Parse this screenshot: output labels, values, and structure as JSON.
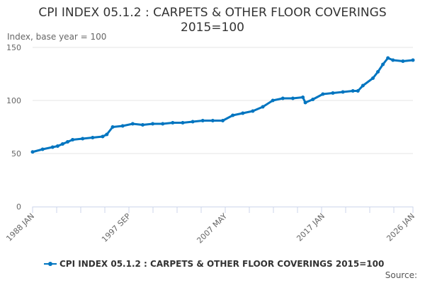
{
  "title_line1": "CPI INDEX 05.1.2 : CARPETS & OTHER FLOOR COVERINGS",
  "title_line2": "2015=100",
  "y_axis_label": "Index, base year = 100",
  "source_label": "Source:",
  "colors": {
    "series": "#0075c0",
    "grid": "#e6e6e6",
    "axis": "#ccd6eb"
  },
  "chart_data": {
    "type": "line",
    "title": "CPI INDEX 05.1.2 : CARPETS & OTHER FLOOR COVERINGS 2015=100",
    "ylabel": "Index, base year = 100",
    "ylim": [
      0,
      150
    ],
    "yticks": [
      "0",
      "50",
      "100",
      "150"
    ],
    "xlim": [
      "1988-01",
      "2026-01"
    ],
    "xtick_labels": [
      "1988 JAN",
      "1997 SEP",
      "2007 MAY",
      "2017 JAN",
      "2026 JAN"
    ],
    "grid": true,
    "legend": "bottom",
    "series": [
      {
        "name": "CPI INDEX 05.1.2 : CARPETS & OTHER FLOOR COVERINGS 2015=100",
        "points": [
          [
            "1988-01",
            51.5
          ],
          [
            "1989-01",
            54
          ],
          [
            "1990-01",
            56
          ],
          [
            "1990-07",
            57
          ],
          [
            "1991-01",
            59
          ],
          [
            "1991-07",
            61
          ],
          [
            "1992-01",
            63
          ],
          [
            "1993-01",
            64
          ],
          [
            "1994-01",
            65
          ],
          [
            "1995-01",
            66
          ],
          [
            "1995-06",
            68
          ],
          [
            "1996-01",
            75
          ],
          [
            "1997-01",
            76
          ],
          [
            "1998-01",
            78
          ],
          [
            "1999-01",
            77
          ],
          [
            "2000-01",
            78
          ],
          [
            "2001-01",
            78
          ],
          [
            "2002-01",
            79
          ],
          [
            "2003-01",
            79
          ],
          [
            "2004-01",
            80
          ],
          [
            "2005-01",
            81
          ],
          [
            "2006-01",
            81
          ],
          [
            "2007-01",
            81
          ],
          [
            "2008-01",
            86
          ],
          [
            "2009-01",
            88
          ],
          [
            "2010-01",
            90
          ],
          [
            "2011-01",
            94
          ],
          [
            "2012-01",
            100
          ],
          [
            "2013-01",
            102
          ],
          [
            "2014-01",
            102
          ],
          [
            "2015-01",
            103
          ],
          [
            "2015-04",
            98
          ],
          [
            "2016-01",
            101
          ],
          [
            "2017-01",
            106
          ],
          [
            "2018-01",
            107
          ],
          [
            "2019-01",
            108
          ],
          [
            "2020-01",
            109
          ],
          [
            "2020-07",
            109
          ],
          [
            "2021-01",
            114
          ],
          [
            "2022-01",
            121
          ],
          [
            "2022-07",
            127
          ],
          [
            "2023-01",
            134
          ],
          [
            "2023-07",
            140
          ],
          [
            "2024-01",
            138
          ],
          [
            "2025-01",
            137
          ],
          [
            "2026-01",
            138
          ]
        ]
      }
    ]
  }
}
